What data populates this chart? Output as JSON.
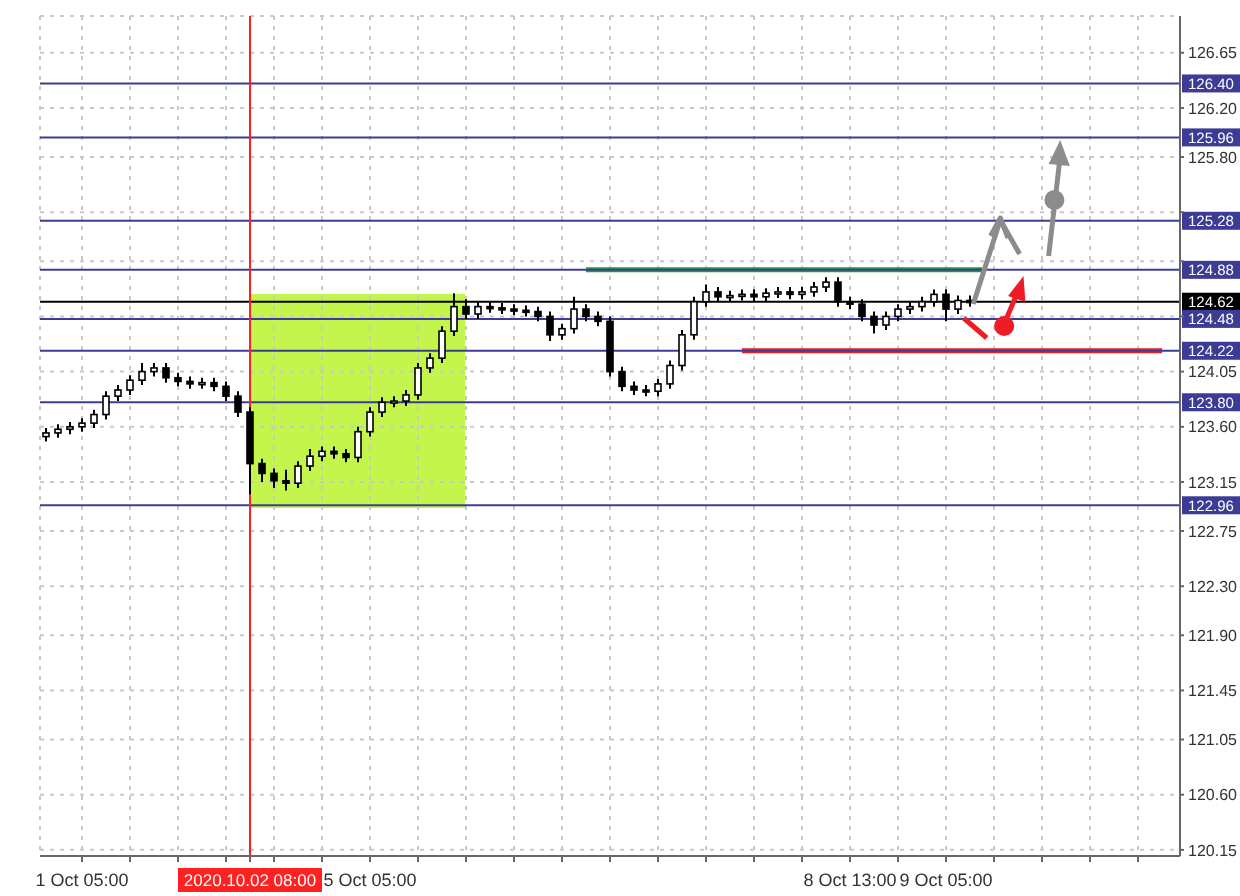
{
  "chart_data": {
    "type": "candlestick",
    "color": "#000000",
    "grid": true,
    "categories": [
      null,
      null,
      null,
      "1 Oct 05:00",
      null,
      null,
      null,
      null,
      null,
      null,
      null,
      null,
      null,
      null,
      null,
      null,
      null,
      "2020.10.02 08:00",
      null,
      null,
      null,
      null,
      null,
      null,
      null,
      null,
      null,
      "5 Oct 05:00",
      null,
      null,
      null,
      null,
      null,
      null,
      null,
      null,
      null,
      null,
      null,
      null,
      null,
      null,
      null,
      null,
      null,
      null,
      null,
      null,
      null,
      null,
      null,
      null,
      null,
      null,
      null,
      null,
      null,
      null,
      null,
      null,
      null,
      null,
      null,
      null,
      null,
      null,
      null,
      "8 Oct 13:00",
      null,
      null,
      null,
      null,
      null,
      null,
      null,
      "9 Oct 05:00",
      null,
      null,
      null,
      null,
      null,
      null,
      null,
      null,
      null,
      null,
      null,
      null,
      null,
      null,
      null,
      null,
      null,
      null,
      null
    ],
    "ohlc": [
      [
        123.52,
        123.59,
        123.48,
        123.55
      ],
      [
        123.55,
        123.62,
        123.51,
        123.58
      ],
      [
        123.58,
        123.64,
        123.54,
        123.6
      ],
      [
        123.6,
        123.67,
        123.56,
        123.63
      ],
      [
        123.63,
        123.74,
        123.59,
        123.7
      ],
      [
        123.7,
        123.89,
        123.66,
        123.85
      ],
      [
        123.85,
        123.94,
        123.81,
        123.9
      ],
      [
        123.9,
        124.02,
        123.86,
        123.98
      ],
      [
        123.98,
        124.12,
        123.94,
        124.05
      ],
      [
        124.05,
        124.12,
        124.01,
        124.08
      ],
      [
        124.08,
        124.12,
        123.96,
        124
      ],
      [
        124,
        124.04,
        123.93,
        123.97
      ],
      [
        123.97,
        124.01,
        123.91,
        123.95
      ],
      [
        123.95,
        124,
        123.91,
        123.96
      ],
      [
        123.96,
        124,
        123.89,
        123.93
      ],
      [
        123.93,
        123.97,
        123.81,
        123.85
      ],
      [
        123.85,
        123.89,
        123.68,
        123.72
      ],
      [
        123.72,
        123.76,
        123.05,
        123.3
      ],
      [
        123.3,
        123.34,
        123.15,
        123.22
      ],
      [
        123.22,
        123.26,
        123.1,
        123.16
      ],
      [
        123.16,
        123.25,
        123.08,
        123.14
      ],
      [
        123.14,
        123.32,
        123.1,
        123.28
      ],
      [
        123.28,
        123.42,
        123.24,
        123.36
      ],
      [
        123.36,
        123.44,
        123.32,
        123.4
      ],
      [
        123.4,
        123.44,
        123.34,
        123.38
      ],
      [
        123.38,
        123.42,
        123.31,
        123.35
      ],
      [
        123.35,
        123.6,
        123.31,
        123.56
      ],
      [
        123.56,
        123.76,
        123.52,
        123.72
      ],
      [
        123.72,
        123.84,
        123.68,
        123.8
      ],
      [
        123.8,
        123.85,
        123.76,
        123.81
      ],
      [
        123.81,
        123.9,
        123.77,
        123.86
      ],
      [
        123.86,
        124.12,
        123.82,
        124.08
      ],
      [
        124.08,
        124.2,
        124.04,
        124.16
      ],
      [
        124.16,
        124.42,
        124.12,
        124.38
      ],
      [
        124.38,
        124.69,
        124.34,
        124.58
      ],
      [
        124.58,
        124.64,
        124.48,
        124.52
      ],
      [
        124.52,
        124.62,
        124.48,
        124.58
      ],
      [
        124.58,
        124.62,
        124.53,
        124.57
      ],
      [
        124.57,
        124.61,
        124.52,
        124.56
      ],
      [
        124.56,
        124.6,
        124.51,
        124.55
      ],
      [
        124.55,
        124.59,
        124.5,
        124.54
      ],
      [
        124.54,
        124.58,
        124.46,
        124.5
      ],
      [
        124.5,
        124.54,
        124.3,
        124.35
      ],
      [
        124.35,
        124.44,
        124.31,
        124.4
      ],
      [
        124.4,
        124.66,
        124.36,
        124.56
      ],
      [
        124.56,
        124.6,
        124.46,
        124.5
      ],
      [
        124.5,
        124.54,
        124.42,
        124.46
      ],
      [
        124.46,
        124.5,
        124.01,
        124.05
      ],
      [
        124.05,
        124.09,
        123.89,
        123.93
      ],
      [
        123.93,
        123.97,
        123.86,
        123.9
      ],
      [
        123.9,
        123.94,
        123.85,
        123.89
      ],
      [
        123.89,
        123.99,
        123.85,
        123.95
      ],
      [
        123.95,
        124.14,
        123.91,
        124.1
      ],
      [
        124.1,
        124.39,
        124.06,
        124.35
      ],
      [
        124.35,
        124.66,
        124.31,
        124.62
      ],
      [
        124.62,
        124.76,
        124.58,
        124.7
      ],
      [
        124.7,
        124.74,
        124.62,
        124.66
      ],
      [
        124.66,
        124.71,
        124.62,
        124.67
      ],
      [
        124.67,
        124.72,
        124.63,
        124.68
      ],
      [
        124.68,
        124.72,
        124.62,
        124.66
      ],
      [
        124.66,
        124.73,
        124.62,
        124.69
      ],
      [
        124.69,
        124.74,
        124.65,
        124.7
      ],
      [
        124.7,
        124.74,
        124.64,
        124.68
      ],
      [
        124.68,
        124.74,
        124.64,
        124.7
      ],
      [
        124.7,
        124.78,
        124.66,
        124.74
      ],
      [
        124.74,
        124.82,
        124.7,
        124.78
      ],
      [
        124.78,
        124.82,
        124.58,
        124.62
      ],
      [
        124.62,
        124.66,
        124.56,
        124.6
      ],
      [
        124.6,
        124.64,
        124.46,
        124.5
      ],
      [
        124.5,
        124.54,
        124.36,
        124.43
      ],
      [
        124.43,
        124.54,
        124.39,
        124.5
      ],
      [
        124.5,
        124.6,
        124.46,
        124.56
      ],
      [
        124.56,
        124.62,
        124.52,
        124.58
      ],
      [
        124.58,
        124.66,
        124.54,
        124.62
      ],
      [
        124.62,
        124.72,
        124.58,
        124.68
      ],
      [
        124.68,
        124.72,
        124.46,
        124.56
      ],
      [
        124.56,
        124.67,
        124.52,
        124.63
      ],
      [
        124.63,
        124.67,
        124.58,
        124.62
      ],
      null,
      null,
      null,
      null,
      null,
      null,
      null,
      null,
      null,
      null,
      null,
      null,
      null,
      null,
      null,
      null,
      null
    ],
    "series": [
      {
        "type": "line",
        "color": "#1fa032",
        "values": [
          null,
          null,
          null,
          null,
          null,
          null,
          null,
          null,
          null,
          null,
          null,
          null,
          null,
          null,
          null,
          null,
          null,
          null,
          null,
          null,
          null,
          null,
          null,
          null,
          null,
          null,
          null,
          null,
          null,
          null,
          null,
          null,
          null,
          null,
          null,
          null,
          null,
          null,
          null,
          null,
          null,
          null,
          null,
          null,
          null,
          124.88,
          124.88,
          124.88,
          124.88,
          124.88,
          124.88,
          124.88,
          124.88,
          124.88,
          124.88,
          124.88,
          124.88,
          124.88,
          124.88,
          124.88,
          124.88,
          124.88,
          124.88,
          124.88,
          124.88,
          124.88,
          124.88,
          124.88,
          124.88,
          124.88,
          124.88,
          124.88,
          124.88,
          124.88,
          124.88,
          124.88,
          124.88,
          124.88,
          124.88,
          null,
          null,
          null,
          null,
          null,
          null,
          null,
          null,
          null,
          null,
          null,
          null,
          null,
          null,
          null,
          null
        ]
      },
      {
        "type": "line",
        "color": "#ee1c25",
        "values": [
          null,
          null,
          null,
          null,
          null,
          null,
          null,
          null,
          null,
          null,
          null,
          null,
          null,
          null,
          null,
          null,
          null,
          null,
          null,
          null,
          null,
          null,
          null,
          null,
          null,
          null,
          null,
          null,
          null,
          null,
          null,
          null,
          null,
          null,
          null,
          null,
          null,
          null,
          null,
          null,
          null,
          null,
          null,
          null,
          null,
          null,
          null,
          null,
          null,
          null,
          null,
          null,
          null,
          null,
          null,
          null,
          null,
          null,
          124.22,
          124.22,
          124.22,
          124.22,
          124.22,
          124.22,
          124.22,
          124.22,
          124.22,
          124.22,
          124.22,
          124.22,
          124.22,
          124.22,
          124.22,
          124.22,
          124.22,
          124.22,
          124.22,
          124.22,
          124.22,
          124.22,
          124.22,
          124.22,
          124.22,
          124.22,
          124.22,
          124.22,
          124.22,
          124.22,
          124.22,
          124.22,
          124.22,
          124.22,
          124.22,
          124.22,
          null
        ]
      }
    ],
    "ylim": [
      120.1,
      126.95
    ],
    "yticks": [
      120.15,
      {
        "value": 120.6,
        "label": "120.60"
      },
      121.05,
      121.45,
      {
        "value": 121.9,
        "label": "121.90"
      },
      {
        "value": 122.3,
        "label": "122.30"
      },
      122.75,
      123.15,
      {
        "value": 123.6,
        "label": "123.60"
      },
      124.05,
      {
        "value": 124.5,
        "label": null
      },
      {
        "value": 124.95,
        "label": null
      },
      {
        "value": 125.35,
        "label": null
      },
      {
        "value": 125.8,
        "label": "125.80"
      },
      {
        "value": 126.2,
        "label": "126.20"
      },
      126.65
    ],
    "ref_lines": [
      {
        "axis": "y",
        "value": 126.4,
        "label": "126.40",
        "color": "#3c3c96"
      },
      {
        "axis": "y",
        "value": 125.96,
        "label": "125.96",
        "color": "#3c3c96"
      },
      {
        "axis": "y",
        "value": 125.28,
        "label": "125.28",
        "color": "#3c3c96"
      },
      {
        "axis": "y",
        "value": 124.88,
        "label": "124.88",
        "color": "#3c3c96"
      },
      {
        "axis": "y",
        "value": 124.62,
        "label": "124.62",
        "color": "#000000"
      },
      {
        "axis": "y",
        "value": 124.48,
        "label": "124.48",
        "color": "#3c3c96"
      },
      {
        "axis": "y",
        "value": 124.22,
        "label": "124.22",
        "color": "#3c3c96"
      },
      {
        "axis": "y",
        "value": 123.8,
        "label": "123.80",
        "color": "#3c3c96"
      },
      {
        "axis": "y",
        "value": 122.96,
        "label": "122.96",
        "color": "#3c3c96"
      },
      {
        "axis": "x",
        "value": "2020.10.02 08:00",
        "color": "#ff2020"
      }
    ]
  }
}
